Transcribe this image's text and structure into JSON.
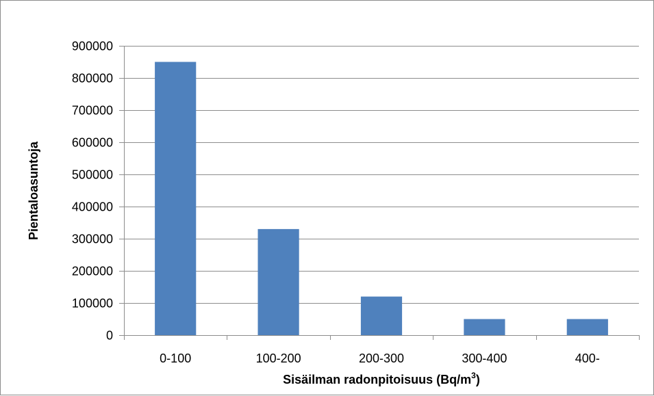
{
  "chart_data": {
    "type": "bar",
    "categories": [
      "0-100",
      "100-200",
      "200-300",
      "300-400",
      "400-"
    ],
    "values": [
      850000,
      330000,
      120000,
      50000,
      50000
    ],
    "xlabel": "Sisäilman radonpitoisuus (Bq/m",
    "xlabel_superscript": "3",
    "xlabel_suffix": ")",
    "ylabel": "Pientaloasuntoja",
    "ylim": [
      0,
      900000
    ],
    "yticks": [
      0,
      100000,
      200000,
      300000,
      400000,
      500000,
      600000,
      700000,
      800000,
      900000
    ],
    "ytick_labels": [
      "0",
      "100000",
      "200000",
      "300000",
      "400000",
      "500000",
      "600000",
      "700000",
      "800000",
      "900000"
    ],
    "grid": true,
    "legend": "none",
    "bar_color": "#4f81bd",
    "grid_color": "#8c8c8c",
    "axis_color": "#8c8c8c"
  }
}
